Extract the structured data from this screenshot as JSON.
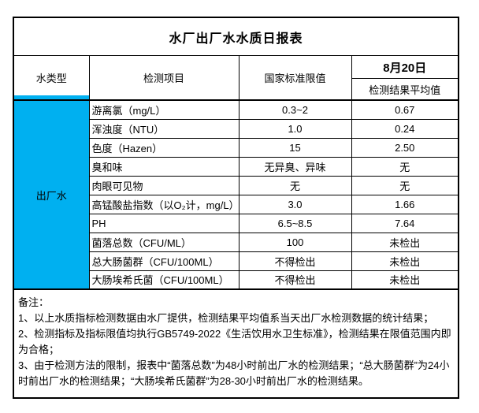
{
  "report": {
    "title": "水厂出厂水水质日报表",
    "header": {
      "water_type": "水类型",
      "item": "检测项目",
      "limit": "国家标准限值",
      "date": "8月20日",
      "result": "检测结果平均值"
    },
    "water_type_value": "出厂水",
    "accent_color": "#00B0F0",
    "rows": [
      {
        "item": "游离氯（mg/L）",
        "limit": "0.3~2",
        "result": "0.67"
      },
      {
        "item": "浑浊度（NTU）",
        "limit": "1.0",
        "result": "0.24"
      },
      {
        "item": "色度（Hazen）",
        "limit": "15",
        "result": "2.50"
      },
      {
        "item": "臭和味",
        "limit": "无异臭、异味",
        "result": "无"
      },
      {
        "item": "肉眼可见物",
        "limit": "无",
        "result": "无"
      },
      {
        "item": "高锰酸盐指数（以O₂计，mg/L）",
        "limit": "3.0",
        "result": "1.66"
      },
      {
        "item": "PH",
        "limit": "6.5~8.5",
        "result": "7.64"
      },
      {
        "item": "菌落总数（CFU/ML）",
        "limit": "100",
        "result": "未检出"
      },
      {
        "item": "总大肠菌群（CFU/100ML）",
        "limit": "不得检出",
        "result": "未检出"
      },
      {
        "item": "大肠埃希氏菌（CFU/100ML）",
        "limit": "不得检出",
        "result": "未检出"
      }
    ],
    "notes": {
      "heading": "备注：",
      "items": [
        "1、以上水质指标检测数据由水厂提供，检测结果平均值系当天出厂水检测数据的统计结果；",
        "2、检测指标及指标限值均执行GB5749-2022《生活饮用水卫生标准》，检测结果在限值范围内即为合格；",
        "3、由于检测方法的限制，报表中“菌落总数”为48小时前出厂水的检测结果；“总大肠菌群”为24小时前出厂水的检测结果；“大肠埃希氏菌群”为28-30小时前出厂水的检测结果。"
      ]
    }
  }
}
